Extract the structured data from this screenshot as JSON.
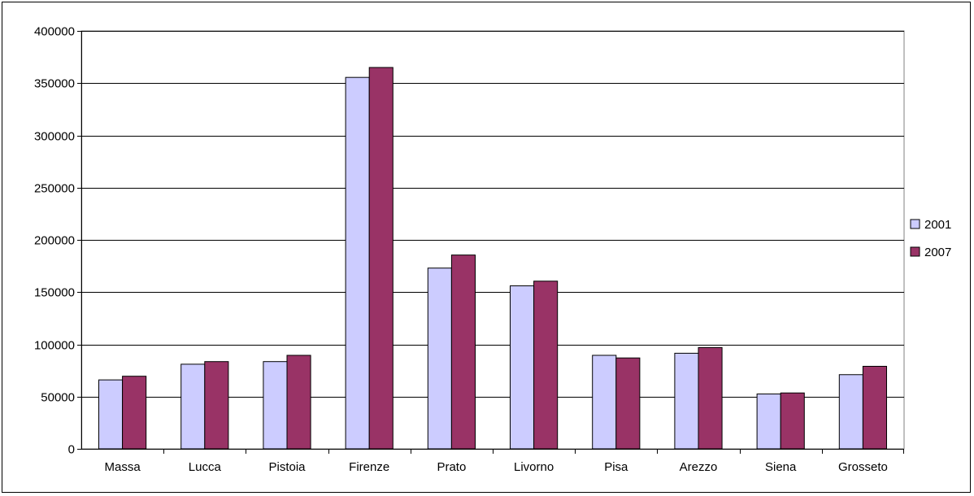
{
  "chart_data": {
    "type": "bar",
    "title": "",
    "xlabel": "",
    "ylabel": "",
    "categories": [
      "Massa",
      "Lucca",
      "Pistoia",
      "Firenze",
      "Prato",
      "Livorno",
      "Pisa",
      "Arezzo",
      "Siena",
      "Grosseto"
    ],
    "series": [
      {
        "name": "2001",
        "color": "#ccccff",
        "values": [
          66000,
          81000,
          83500,
          355500,
          173000,
          156000,
          89500,
          91500,
          52500,
          71000
        ]
      },
      {
        "name": "2007",
        "color": "#993366",
        "values": [
          69500,
          83500,
          89500,
          365000,
          185500,
          160500,
          87000,
          97000,
          53500,
          79000
        ]
      }
    ],
    "ylim": [
      0,
      400000
    ],
    "yticks": [
      0,
      50000,
      100000,
      150000,
      200000,
      250000,
      300000,
      350000,
      400000
    ],
    "grid": true,
    "legend": "right"
  }
}
